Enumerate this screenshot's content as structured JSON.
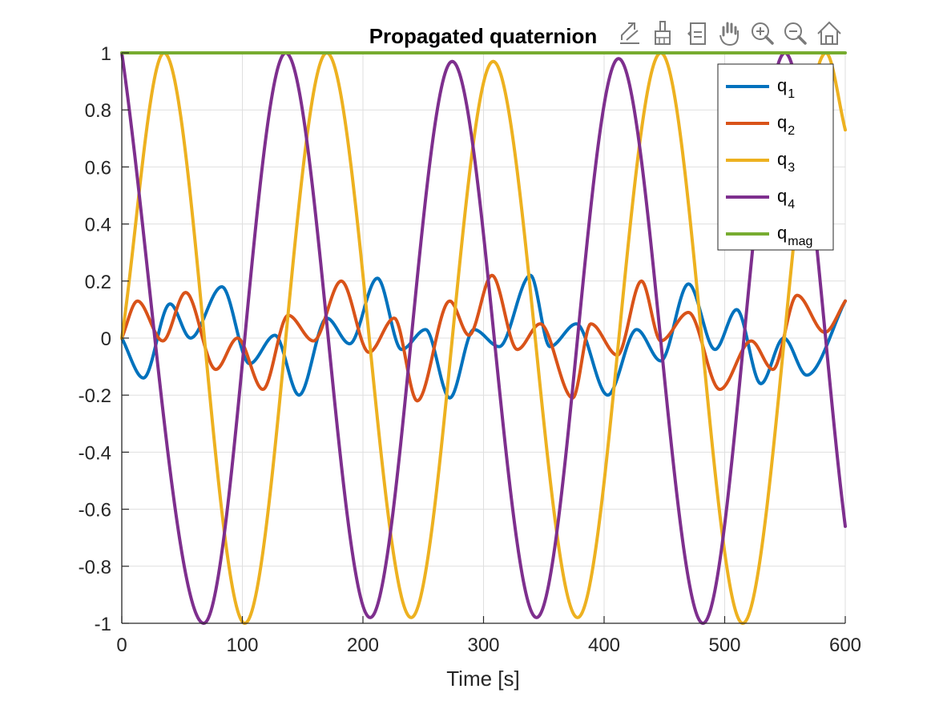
{
  "toolbar": {
    "buttons": [
      {
        "name": "export-button",
        "icon": "export-icon"
      },
      {
        "name": "brush-button",
        "icon": "brush-icon"
      },
      {
        "name": "datatips-button",
        "icon": "datatips-icon"
      },
      {
        "name": "pan-button",
        "icon": "pan-hand-icon"
      },
      {
        "name": "zoom-in-button",
        "icon": "zoom-in-icon"
      },
      {
        "name": "zoom-out-button",
        "icon": "zoom-out-icon"
      },
      {
        "name": "restore-view-button",
        "icon": "home-icon"
      }
    ]
  },
  "chart_data": {
    "type": "line",
    "title": "Propagated quaternion",
    "xlabel": "Time [s]",
    "ylabel": "",
    "xlim": [
      0,
      600
    ],
    "ylim": [
      -1,
      1
    ],
    "xticks": [
      0,
      100,
      200,
      300,
      400,
      500,
      600
    ],
    "xtick_labels": [
      "0",
      "100",
      "200",
      "300",
      "400",
      "500",
      "600"
    ],
    "yticks": [
      -1,
      -0.8,
      -0.6,
      -0.4,
      -0.2,
      0,
      0.2,
      0.4,
      0.6,
      0.8,
      1
    ],
    "ytick_labels": [
      "-1",
      "-0.8",
      "-0.6",
      "-0.4",
      "-0.2",
      "0",
      "0.2",
      "0.4",
      "0.6",
      "0.8",
      "1"
    ],
    "grid": true,
    "legend_position": "top-right",
    "series": [
      {
        "name": "q",
        "sub": "1",
        "color": "#0072BD",
        "x": [
          0,
          18,
          40,
          57,
          83,
          106,
          127,
          147,
          170,
          189,
          212,
          232,
          252,
          272,
          292,
          313,
          339,
          355,
          377,
          403,
          427,
          447,
          470,
          492,
          510,
          530,
          549,
          568,
          600
        ],
        "y": [
          0,
          -0.14,
          0.12,
          0.0,
          0.18,
          -0.09,
          0.01,
          -0.2,
          0.07,
          -0.02,
          0.21,
          -0.04,
          0.03,
          -0.21,
          0.03,
          -0.03,
          0.22,
          -0.03,
          0.05,
          -0.2,
          0.03,
          -0.08,
          0.19,
          -0.04,
          0.1,
          -0.16,
          0.0,
          -0.13,
          0.13
        ]
      },
      {
        "name": "q",
        "sub": "2",
        "color": "#D95319",
        "x": [
          0,
          13,
          34,
          53,
          78,
          96,
          117,
          138,
          159,
          182,
          205,
          226,
          245,
          272,
          288,
          307,
          328,
          347,
          374,
          389,
          411,
          431,
          447,
          470,
          496,
          522,
          540,
          560,
          583,
          600
        ],
        "y": [
          0,
          0.13,
          -0.01,
          0.16,
          -0.11,
          0.0,
          -0.18,
          0.08,
          -0.01,
          0.2,
          -0.05,
          0.07,
          -0.22,
          0.13,
          0.01,
          0.22,
          -0.04,
          0.05,
          -0.21,
          0.05,
          -0.06,
          0.2,
          -0.01,
          0.09,
          -0.18,
          -0.01,
          -0.11,
          0.15,
          0.02,
          0.13
        ]
      },
      {
        "name": "q",
        "sub": "3",
        "color": "#EDB120",
        "x": [
          0,
          35,
          102,
          170,
          240,
          308,
          378,
          447,
          515,
          584,
          600
        ],
        "y": [
          0,
          1,
          -1,
          1,
          -0.98,
          0.97,
          -0.98,
          1,
          -1,
          1,
          0.73
        ]
      },
      {
        "name": "q",
        "sub": "4",
        "color": "#7E2F8E",
        "x": [
          0,
          68,
          136,
          206,
          274,
          344,
          412,
          482,
          550,
          600
        ],
        "y": [
          1,
          -1,
          1,
          -0.98,
          0.97,
          -0.98,
          0.98,
          -1,
          1,
          -0.66
        ]
      },
      {
        "name": "q",
        "sub": "mag",
        "color": "#77AC30",
        "x": [
          0,
          600
        ],
        "y": [
          1,
          1
        ]
      }
    ]
  }
}
